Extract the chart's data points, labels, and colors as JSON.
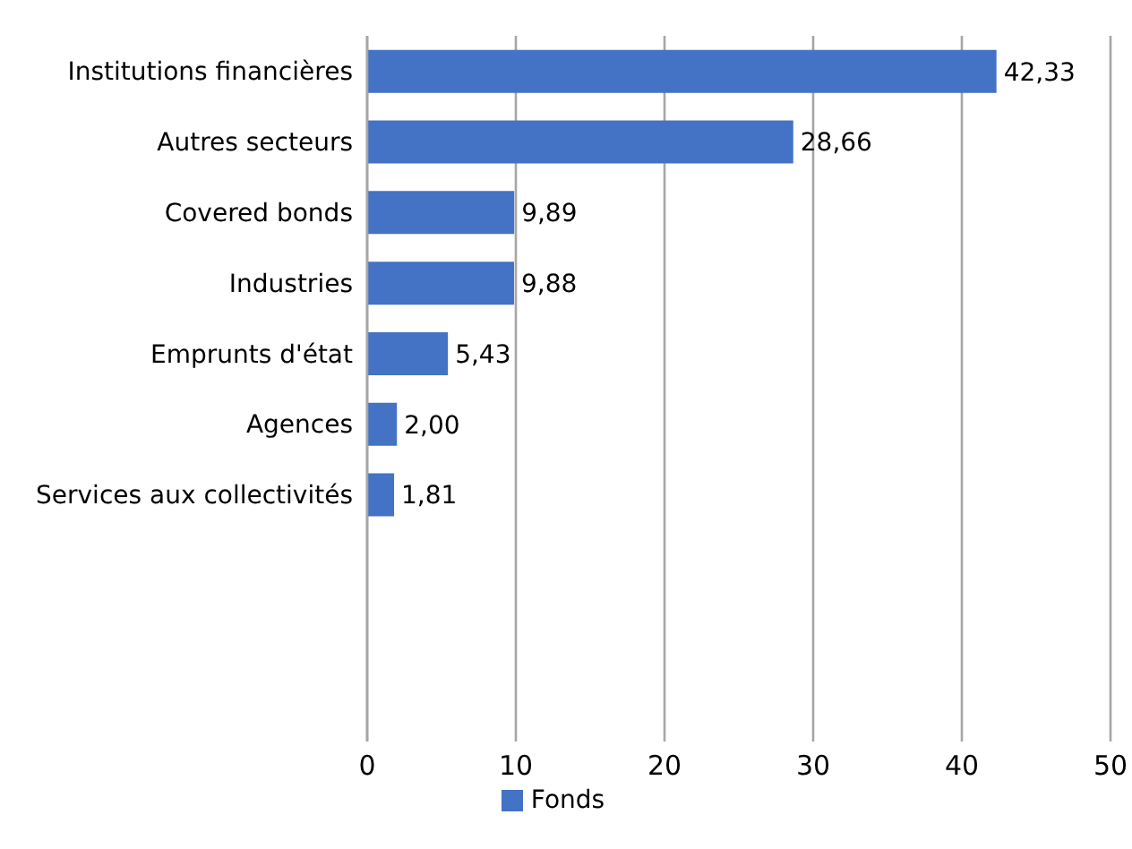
{
  "chart_data": {
    "type": "bar",
    "orientation": "horizontal",
    "categories": [
      "Institutions financières",
      "Autres secteurs",
      "Covered bonds",
      "Industries",
      "Emprunts d'état",
      "Agences",
      "Services aux collectivités",
      null,
      null,
      null
    ],
    "series": [
      {
        "name": "Fonds",
        "color": "#4472c4",
        "values": [
          42.33,
          28.66,
          9.89,
          9.88,
          5.43,
          2.0,
          1.81,
          null,
          null,
          null
        ],
        "value_labels": [
          "42,33",
          "28,66",
          "9,89",
          "9,88",
          "5,43",
          "2,00",
          "1,81",
          null,
          null,
          null
        ]
      }
    ],
    "xlim": [
      0,
      50
    ],
    "xticks": [
      0,
      10,
      20,
      30,
      40,
      50
    ],
    "grid": "x",
    "legend": "bottom"
  }
}
